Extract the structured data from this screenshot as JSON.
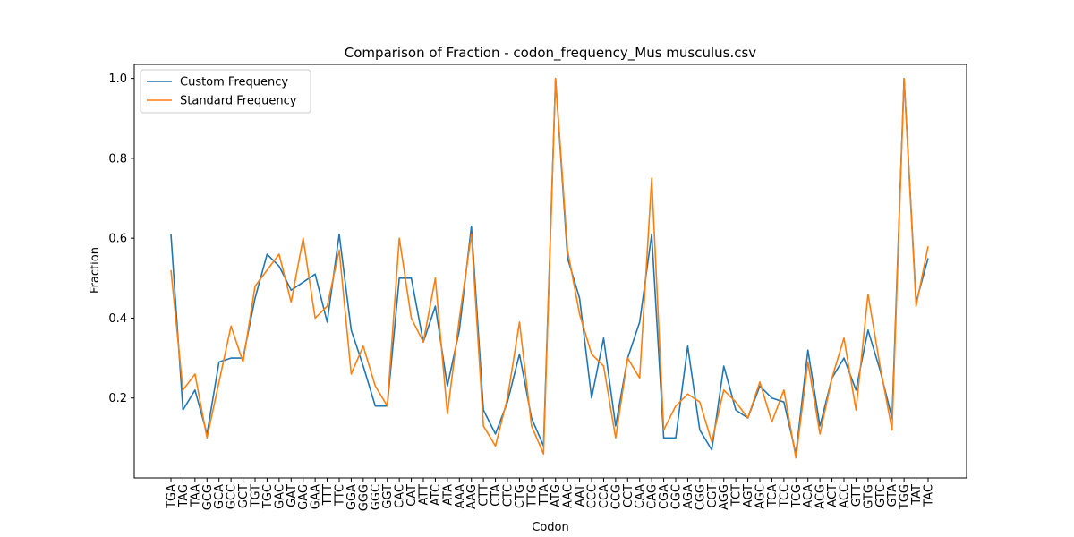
{
  "chart_data": {
    "type": "line",
    "title": "Comparison of Fraction - codon_frequency_Mus musculus.csv",
    "xlabel": "Codon",
    "ylabel": "Fraction",
    "ylim": [
      0.0,
      1.035
    ],
    "yticks": [
      0.2,
      0.4,
      0.6,
      0.8,
      1.0
    ],
    "ytick_labels": [
      "0.2",
      "0.4",
      "0.6",
      "0.8",
      "1.0"
    ],
    "grid": false,
    "legend": "top-left",
    "categories": [
      "TGA",
      "TAG",
      "TAA",
      "GCG",
      "GCA",
      "GCC",
      "GCT",
      "TGT",
      "TGC",
      "GAC",
      "GAT",
      "GAG",
      "GAA",
      "TTT",
      "TTC",
      "GGA",
      "GGG",
      "GGC",
      "GGT",
      "CAC",
      "CAT",
      "ATT",
      "ATC",
      "ATA",
      "AAA",
      "AAG",
      "CTT",
      "CTA",
      "CTC",
      "CTG",
      "TTG",
      "TTA",
      "ATG",
      "AAC",
      "AAT",
      "CCC",
      "CCA",
      "CCG",
      "CCT",
      "CAA",
      "CAG",
      "CGA",
      "CGC",
      "AGA",
      "CGG",
      "CGT",
      "AGG",
      "TCT",
      "AGT",
      "AGC",
      "TCA",
      "TCC",
      "TCG",
      "ACA",
      "ACG",
      "ACT",
      "ACC",
      "GTT",
      "GTG",
      "GTC",
      "GTA",
      "TGG",
      "TAT",
      "TAC"
    ],
    "series": [
      {
        "name": "Custom Frequency",
        "color": "#1f77b4",
        "values": [
          0.61,
          0.17,
          0.22,
          0.11,
          0.29,
          0.3,
          0.3,
          0.45,
          0.56,
          0.53,
          0.47,
          0.49,
          0.51,
          0.39,
          0.61,
          0.37,
          0.28,
          0.18,
          0.18,
          0.5,
          0.5,
          0.34,
          0.43,
          0.23,
          0.37,
          0.63,
          0.17,
          0.11,
          0.19,
          0.31,
          0.15,
          0.08,
          1.0,
          0.55,
          0.45,
          0.2,
          0.35,
          0.13,
          0.3,
          0.39,
          0.61,
          0.1,
          0.1,
          0.33,
          0.12,
          0.07,
          0.28,
          0.17,
          0.15,
          0.23,
          0.2,
          0.19,
          0.06,
          0.32,
          0.13,
          0.25,
          0.3,
          0.22,
          0.37,
          0.27,
          0.15,
          1.0,
          0.44,
          0.55
        ]
      },
      {
        "name": "Standard Frequency",
        "color": "#ff7f0e",
        "values": [
          0.52,
          0.22,
          0.26,
          0.1,
          0.24,
          0.38,
          0.29,
          0.48,
          0.52,
          0.56,
          0.44,
          0.6,
          0.4,
          0.43,
          0.57,
          0.26,
          0.33,
          0.23,
          0.18,
          0.6,
          0.4,
          0.34,
          0.5,
          0.16,
          0.4,
          0.61,
          0.13,
          0.08,
          0.2,
          0.39,
          0.13,
          0.06,
          1.0,
          0.57,
          0.41,
          0.31,
          0.28,
          0.1,
          0.3,
          0.25,
          0.75,
          0.12,
          0.18,
          0.21,
          0.19,
          0.09,
          0.22,
          0.19,
          0.15,
          0.24,
          0.14,
          0.22,
          0.05,
          0.29,
          0.11,
          0.25,
          0.35,
          0.17,
          0.46,
          0.28,
          0.12,
          1.0,
          0.43,
          0.58
        ]
      }
    ]
  }
}
